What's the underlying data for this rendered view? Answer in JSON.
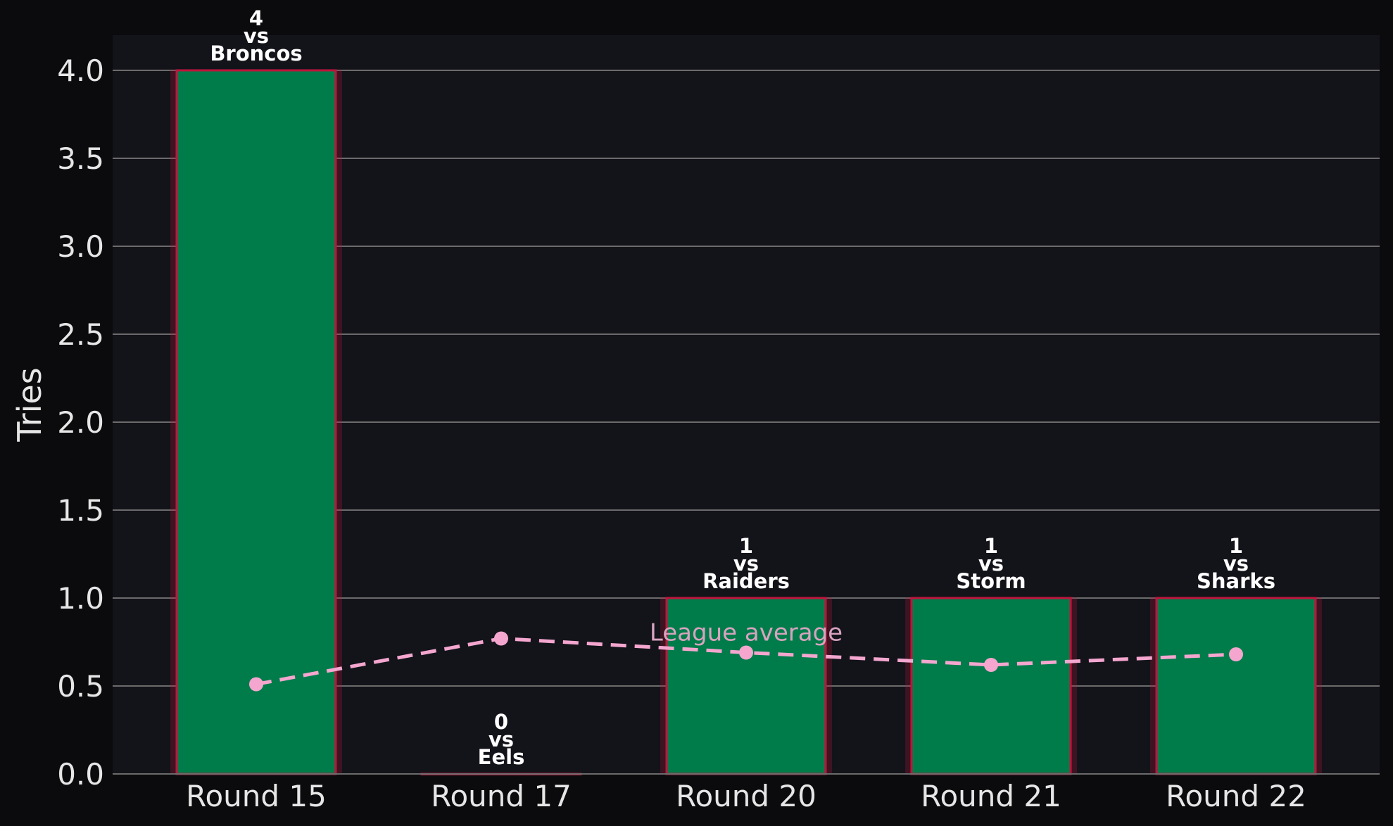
{
  "chart_data": {
    "type": "bar",
    "title": "",
    "xlabel": "",
    "ylabel": "Tries",
    "categories": [
      "Round 15",
      "Round 17",
      "Round 20",
      "Round 21",
      "Round 22"
    ],
    "opponents": [
      "Broncos",
      "Eels",
      "Raiders",
      "Storm",
      "Sharks"
    ],
    "vs_text": "vs",
    "series": [
      {
        "values": [
          4,
          0,
          1,
          1,
          1
        ]
      },
      {
        "name": "League average",
        "type": "line",
        "values": [
          0.51,
          0.77,
          0.69,
          0.62,
          0.68
        ]
      }
    ],
    "ylim": [
      0,
      4.2
    ],
    "yticks": [
      "0.0",
      "0.5",
      "1.0",
      "1.5",
      "2.0",
      "2.5",
      "3.0",
      "3.5",
      "4.0"
    ],
    "grid": true,
    "colors": {
      "background": "#0b0b0e",
      "plot_background": "#13131a",
      "bar_fill": "#007c4a",
      "bar_edge": "#c0143c",
      "grid": "#6b6b6b",
      "average_line": "#f4a6cf",
      "text": "#e6e6e6"
    }
  }
}
